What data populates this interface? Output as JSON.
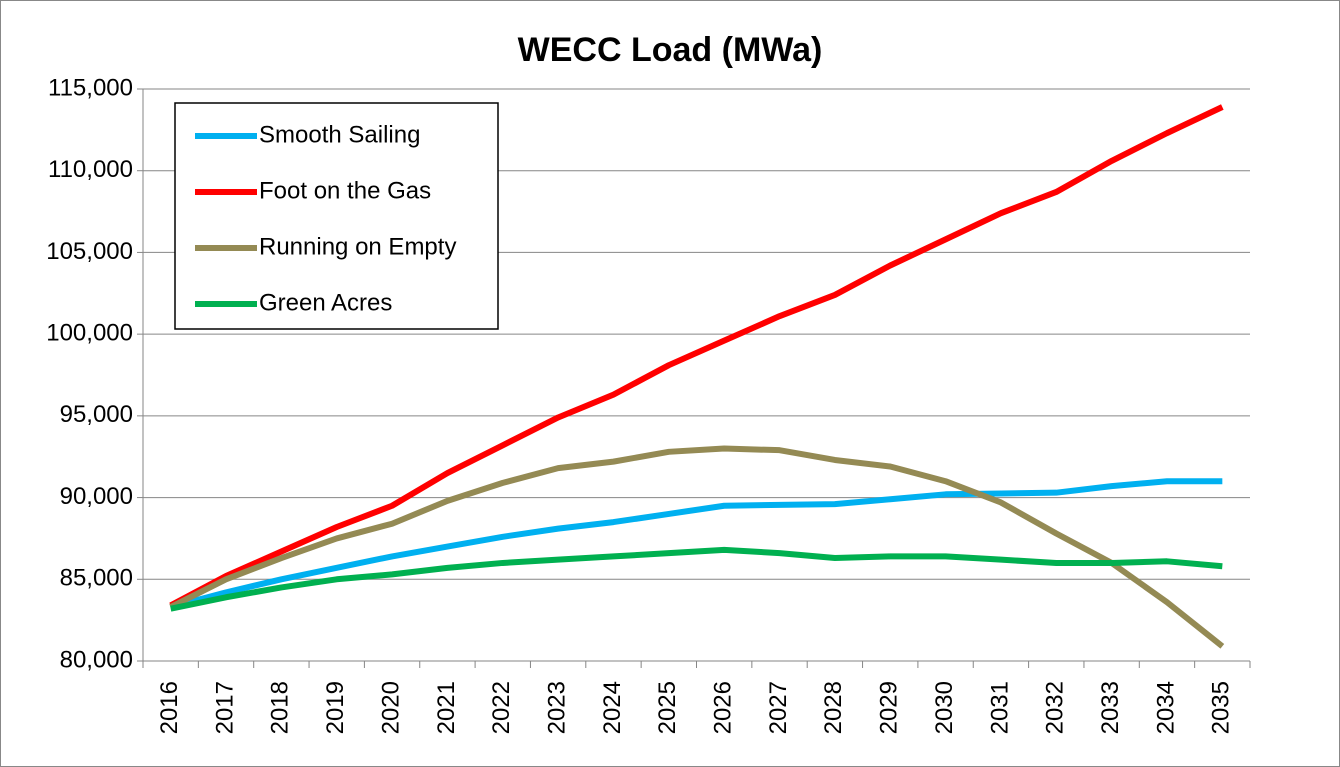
{
  "chart_data": {
    "type": "line",
    "title": "WECC Load (MWa)",
    "categories": [
      "2016",
      "2017",
      "2018",
      "2019",
      "2020",
      "2021",
      "2022",
      "2023",
      "2024",
      "2025",
      "2026",
      "2027",
      "2028",
      "2029",
      "2030",
      "2031",
      "2032",
      "2033",
      "2034",
      "2035"
    ],
    "series": [
      {
        "name": "Smooth Sailing",
        "color": "#00b0f0",
        "values": [
          83300,
          84200,
          85000,
          85700,
          86400,
          87000,
          87600,
          88100,
          88500,
          89000,
          89500,
          89550,
          89600,
          89900,
          90200,
          90250,
          90300,
          90700,
          91000,
          91000
        ]
      },
      {
        "name": "Foot on the Gas",
        "color": "#ff0000",
        "values": [
          83400,
          85200,
          86700,
          88200,
          89500,
          91500,
          93200,
          94900,
          96300,
          98100,
          99600,
          101100,
          102400,
          104200,
          105800,
          107400,
          108700,
          110600,
          112300,
          113900
        ]
      },
      {
        "name": "Running on Empty",
        "color": "#948a54",
        "values": [
          83300,
          85000,
          86300,
          87500,
          88400,
          89800,
          90900,
          91800,
          92200,
          92800,
          93000,
          92900,
          92300,
          91900,
          91000,
          89700,
          87800,
          86000,
          83600,
          80900
        ]
      },
      {
        "name": "Green Acres",
        "color": "#00b050",
        "values": [
          83200,
          83900,
          84500,
          85000,
          85300,
          85700,
          86000,
          86200,
          86400,
          86600,
          86800,
          86600,
          86300,
          86400,
          86400,
          86200,
          86000,
          86000,
          86100,
          85800
        ]
      }
    ],
    "ylim": [
      80000,
      115000
    ],
    "yticks": [
      {
        "value": 80000,
        "label": "80,000"
      },
      {
        "value": 85000,
        "label": "85,000"
      },
      {
        "value": 90000,
        "label": "90,000"
      },
      {
        "value": 95000,
        "label": "95,000"
      },
      {
        "value": 100000,
        "label": "100,000"
      },
      {
        "value": 105000,
        "label": "105,000"
      },
      {
        "value": 110000,
        "label": "110,000"
      },
      {
        "value": 115000,
        "label": "115,000"
      }
    ],
    "grid": true,
    "legend": "top-left"
  }
}
